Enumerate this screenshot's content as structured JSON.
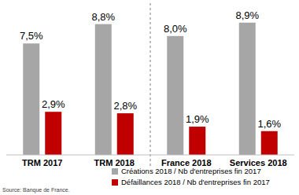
{
  "chart_data": {
    "type": "bar",
    "categories": [
      "TRM 2017",
      "TRM 2018",
      "France 2018",
      "Services 2018"
    ],
    "series": [
      {
        "name": "Créations 2018 / Nb d'entreprises fin 2017",
        "color": "#a6a6a6",
        "values": [
          7.5,
          8.8,
          8.0,
          8.9
        ],
        "value_labels": [
          "7,5%",
          "8,8%",
          "8,0%",
          "8,9%"
        ]
      },
      {
        "name": "Défaillances 2018 / Nb d'entreprises fin 2017",
        "color": "#c00000",
        "values": [
          2.9,
          2.8,
          1.9,
          1.6
        ],
        "value_labels": [
          "2,9%",
          "2,8%",
          "1,9%",
          "1,6%"
        ]
      }
    ],
    "ylim": [
      0,
      10
    ],
    "data_labels": true,
    "tick_labels": "x",
    "grid": false,
    "source": "Source: Banque de France."
  }
}
